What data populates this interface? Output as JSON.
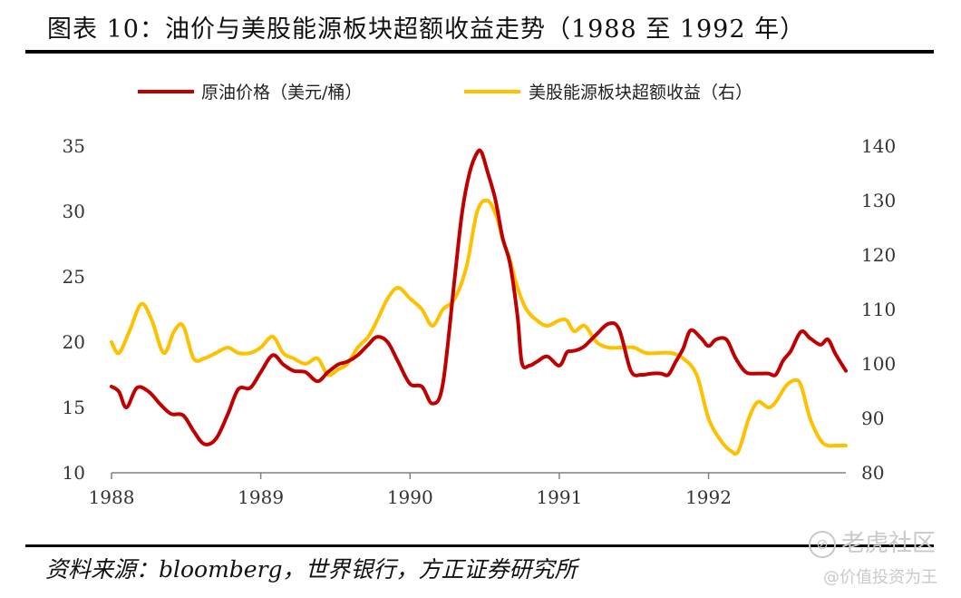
{
  "header": {
    "title": "图表 10：油价与美股能源板块超额收益走势（1988 至 1992 年）"
  },
  "footer": {
    "source": "资料来源：bloomberg，世界银行，方正证券研究所"
  },
  "watermark": {
    "brand": "老虎社区",
    "handle": "@价值投资为王"
  },
  "chart_data": {
    "type": "line",
    "title": "",
    "xlabel": "",
    "ylabel": "",
    "x_tick_labels": [
      "1988",
      "1989",
      "1990",
      "1991",
      "1992"
    ],
    "x_range": [
      1988.0,
      1992.92
    ],
    "left_axis": {
      "range": [
        10,
        35
      ],
      "ticks": [
        10,
        15,
        20,
        25,
        30,
        35
      ]
    },
    "right_axis": {
      "range": [
        80,
        140
      ],
      "ticks": [
        80,
        90,
        100,
        110,
        120,
        130,
        140
      ]
    },
    "grid": false,
    "legend_position": "top",
    "series": [
      {
        "name": "原油价格（美元/桶）",
        "axis": "left",
        "color": "#C00000",
        "x": [
          1988.0,
          1988.05,
          1988.1,
          1988.17,
          1988.25,
          1988.33,
          1988.4,
          1988.48,
          1988.55,
          1988.62,
          1988.7,
          1988.78,
          1988.85,
          1988.93,
          1989.0,
          1989.08,
          1989.15,
          1989.22,
          1989.3,
          1989.38,
          1989.45,
          1989.52,
          1989.58,
          1989.65,
          1989.72,
          1989.78,
          1989.85,
          1989.92,
          1990.0,
          1990.08,
          1990.15,
          1990.22,
          1990.3,
          1990.35,
          1990.4,
          1990.45,
          1990.48,
          1990.52,
          1990.57,
          1990.62,
          1990.67,
          1990.72,
          1990.75,
          1990.8,
          1990.85,
          1990.92,
          1991.0,
          1991.05,
          1991.08,
          1991.12,
          1991.17,
          1991.25,
          1991.33,
          1991.4,
          1991.48,
          1991.55,
          1991.62,
          1991.68,
          1991.73,
          1991.78,
          1991.83,
          1991.88,
          1991.95,
          1992.0,
          1992.05,
          1992.12,
          1992.18,
          1992.25,
          1992.33,
          1992.4,
          1992.45,
          1992.5,
          1992.55,
          1992.62,
          1992.68,
          1992.75,
          1992.8,
          1992.85,
          1992.92
        ],
        "values": [
          16.6,
          16.2,
          15.0,
          16.5,
          16.2,
          15.2,
          14.5,
          14.4,
          13.2,
          12.2,
          12.6,
          14.5,
          16.4,
          16.5,
          17.7,
          19.0,
          18.3,
          17.8,
          17.7,
          17.0,
          17.7,
          18.3,
          18.5,
          19.0,
          19.8,
          20.4,
          20.0,
          18.5,
          16.8,
          16.6,
          15.3,
          16.8,
          25.0,
          30.0,
          33.0,
          34.5,
          34.5,
          33.0,
          31.0,
          28.0,
          26.0,
          22.0,
          18.4,
          18.2,
          18.5,
          18.9,
          18.2,
          19.2,
          19.3,
          19.4,
          19.7,
          20.6,
          21.4,
          21.0,
          17.8,
          17.5,
          17.6,
          17.6,
          17.5,
          18.5,
          19.5,
          20.9,
          20.3,
          19.7,
          20.2,
          20.2,
          18.8,
          17.7,
          17.6,
          17.6,
          17.5,
          18.6,
          19.3,
          20.8,
          20.3,
          19.8,
          20.2,
          19.1,
          17.8
        ]
      },
      {
        "name": "美股能源板块超额收益（右）",
        "axis": "right",
        "color": "#FFC000",
        "x": [
          1988.0,
          1988.05,
          1988.12,
          1988.2,
          1988.27,
          1988.35,
          1988.42,
          1988.48,
          1988.55,
          1988.62,
          1988.7,
          1988.78,
          1988.85,
          1988.93,
          1989.0,
          1989.08,
          1989.15,
          1989.22,
          1989.3,
          1989.38,
          1989.45,
          1989.52,
          1989.58,
          1989.65,
          1989.72,
          1989.78,
          1989.85,
          1989.92,
          1990.0,
          1990.08,
          1990.15,
          1990.22,
          1990.3,
          1990.38,
          1990.45,
          1990.52,
          1990.58,
          1990.62,
          1990.67,
          1990.72,
          1990.78,
          1990.85,
          1990.92,
          1991.0,
          1991.05,
          1991.1,
          1991.17,
          1991.25,
          1991.33,
          1991.42,
          1991.5,
          1991.58,
          1991.67,
          1991.75,
          1991.83,
          1991.92,
          1992.0,
          1992.08,
          1992.15,
          1992.2,
          1992.27,
          1992.33,
          1992.4,
          1992.45,
          1992.52,
          1992.58,
          1992.62,
          1992.68,
          1992.75,
          1992.8,
          1992.85,
          1992.92
        ],
        "values": [
          104,
          102,
          106,
          111,
          108,
          102,
          106,
          107,
          101,
          101,
          102,
          103,
          102,
          102,
          103,
          105,
          102,
          101,
          100,
          101,
          98,
          99,
          100,
          103,
          105,
          108,
          112,
          114,
          112,
          110,
          107,
          110,
          112,
          118,
          128,
          130,
          127,
          123,
          119,
          114,
          110,
          108,
          107,
          108,
          108,
          106,
          107,
          104,
          103,
          103,
          103,
          102,
          102,
          102,
          101,
          98,
          90,
          86,
          84,
          84,
          90,
          93,
          92,
          93,
          96,
          97,
          96,
          90,
          86,
          85,
          85,
          85
        ]
      }
    ]
  }
}
